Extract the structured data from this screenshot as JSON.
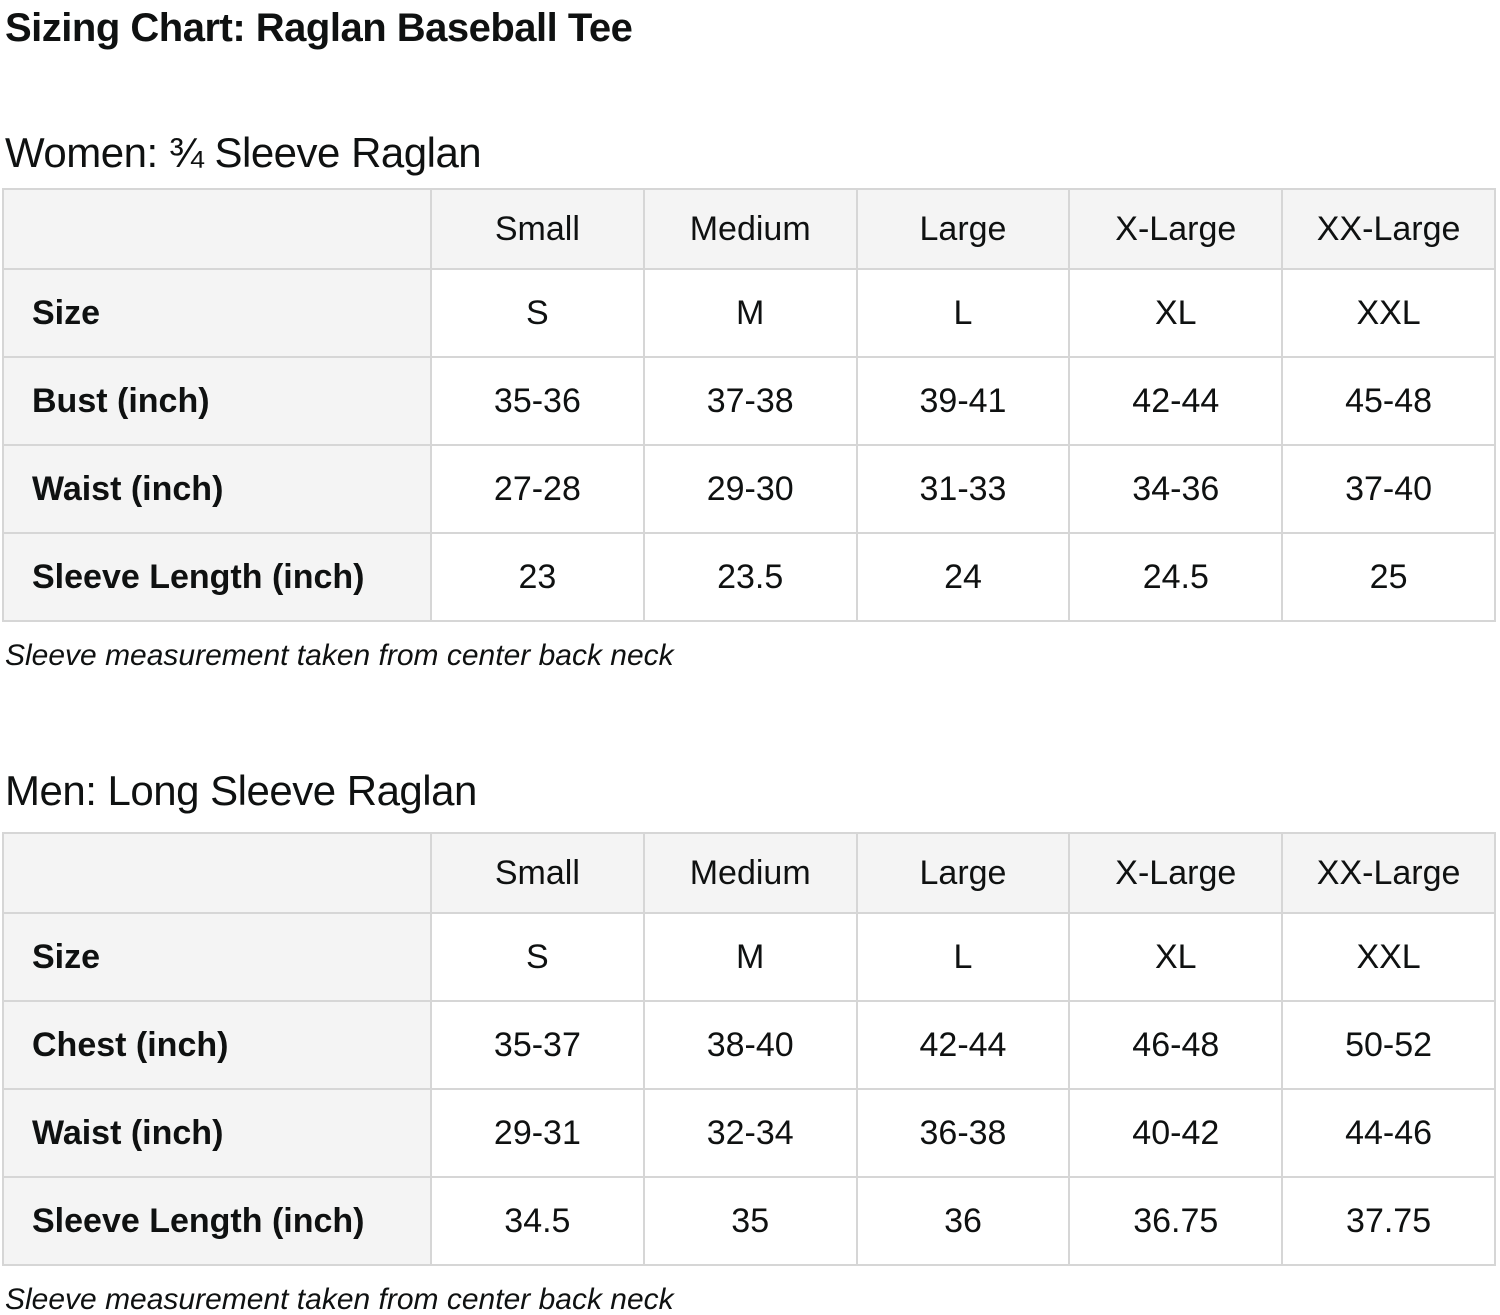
{
  "page": {
    "title": "Sizing Chart: Raglan Baseball Tee"
  },
  "colors": {
    "text": "#0f1111",
    "header_bg": "#f4f4f4",
    "border": "#d6d6d6",
    "cell_bg": "#ffffff"
  },
  "sections": [
    {
      "heading": "Women: ¾ Sleeve Raglan",
      "note": "Sleeve measurement taken from center back neck",
      "table": {
        "columns": [
          "Small",
          "Medium",
          "Large",
          "X-Large",
          "XX-Large"
        ],
        "rows": [
          {
            "label": "Size",
            "values": [
              "S",
              "M",
              "L",
              "XL",
              "XXL"
            ]
          },
          {
            "label": "Bust (inch)",
            "values": [
              "35-36",
              "37-38",
              "39-41",
              "42-44",
              "45-48"
            ]
          },
          {
            "label": "Waist (inch)",
            "values": [
              "27-28",
              "29-30",
              "31-33",
              "34-36",
              "37-40"
            ]
          },
          {
            "label": "Sleeve Length (inch)",
            "values": [
              "23",
              "23.5",
              "24",
              "24.5",
              "25"
            ]
          }
        ]
      }
    },
    {
      "heading": "Men: Long Sleeve Raglan",
      "note": "Sleeve measurement taken from center back neck",
      "table": {
        "columns": [
          "Small",
          "Medium",
          "Large",
          "X-Large",
          "XX-Large"
        ],
        "rows": [
          {
            "label": "Size",
            "values": [
              "S",
              "M",
              "L",
              "XL",
              "XXL"
            ]
          },
          {
            "label": "Chest (inch)",
            "values": [
              "35-37",
              "38-40",
              "42-44",
              "46-48",
              "50-52"
            ]
          },
          {
            "label": "Waist (inch)",
            "values": [
              "29-31",
              "32-34",
              "36-38",
              "40-42",
              "44-46"
            ]
          },
          {
            "label": "Sleeve Length (inch)",
            "values": [
              "34.5",
              "35",
              "36",
              "36.75",
              "37.75"
            ]
          }
        ]
      }
    }
  ]
}
